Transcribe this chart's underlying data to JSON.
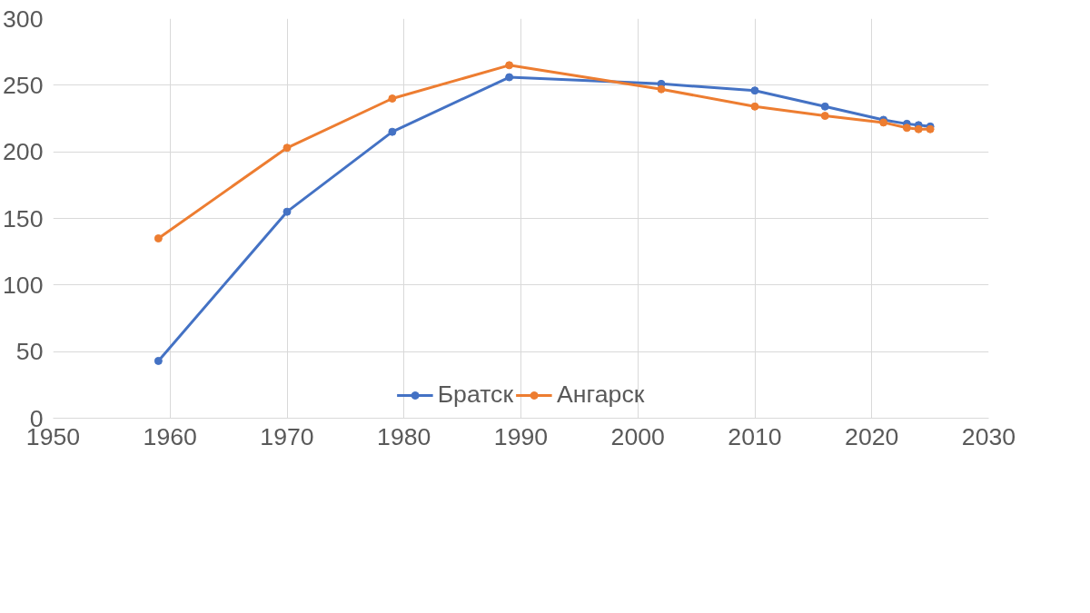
{
  "chart_data": {
    "type": "line",
    "x": [
      1959,
      1970,
      1979,
      1989,
      2002,
      2010,
      2016,
      2021,
      2023,
      2024,
      2025
    ],
    "series": [
      {
        "name": "Братск",
        "color": "#4472c4",
        "values": [
          43,
          155,
          215,
          256,
          251,
          246,
          234,
          224,
          221,
          220,
          219
        ]
      },
      {
        "name": "Ангарск",
        "color": "#ed7d31",
        "values": [
          135,
          203,
          240,
          265,
          247,
          234,
          227,
          222,
          218,
          217,
          217
        ]
      }
    ],
    "xlim": [
      1950,
      2030
    ],
    "xticks": [
      1950,
      1960,
      1970,
      1980,
      1990,
      2000,
      2010,
      2020,
      2030
    ],
    "ylim": [
      0,
      300
    ],
    "yticks": [
      0,
      50,
      100,
      150,
      200,
      250,
      300
    ],
    "grid": true,
    "legend": "bottom",
    "marker": "circle",
    "line_style": "solid"
  }
}
